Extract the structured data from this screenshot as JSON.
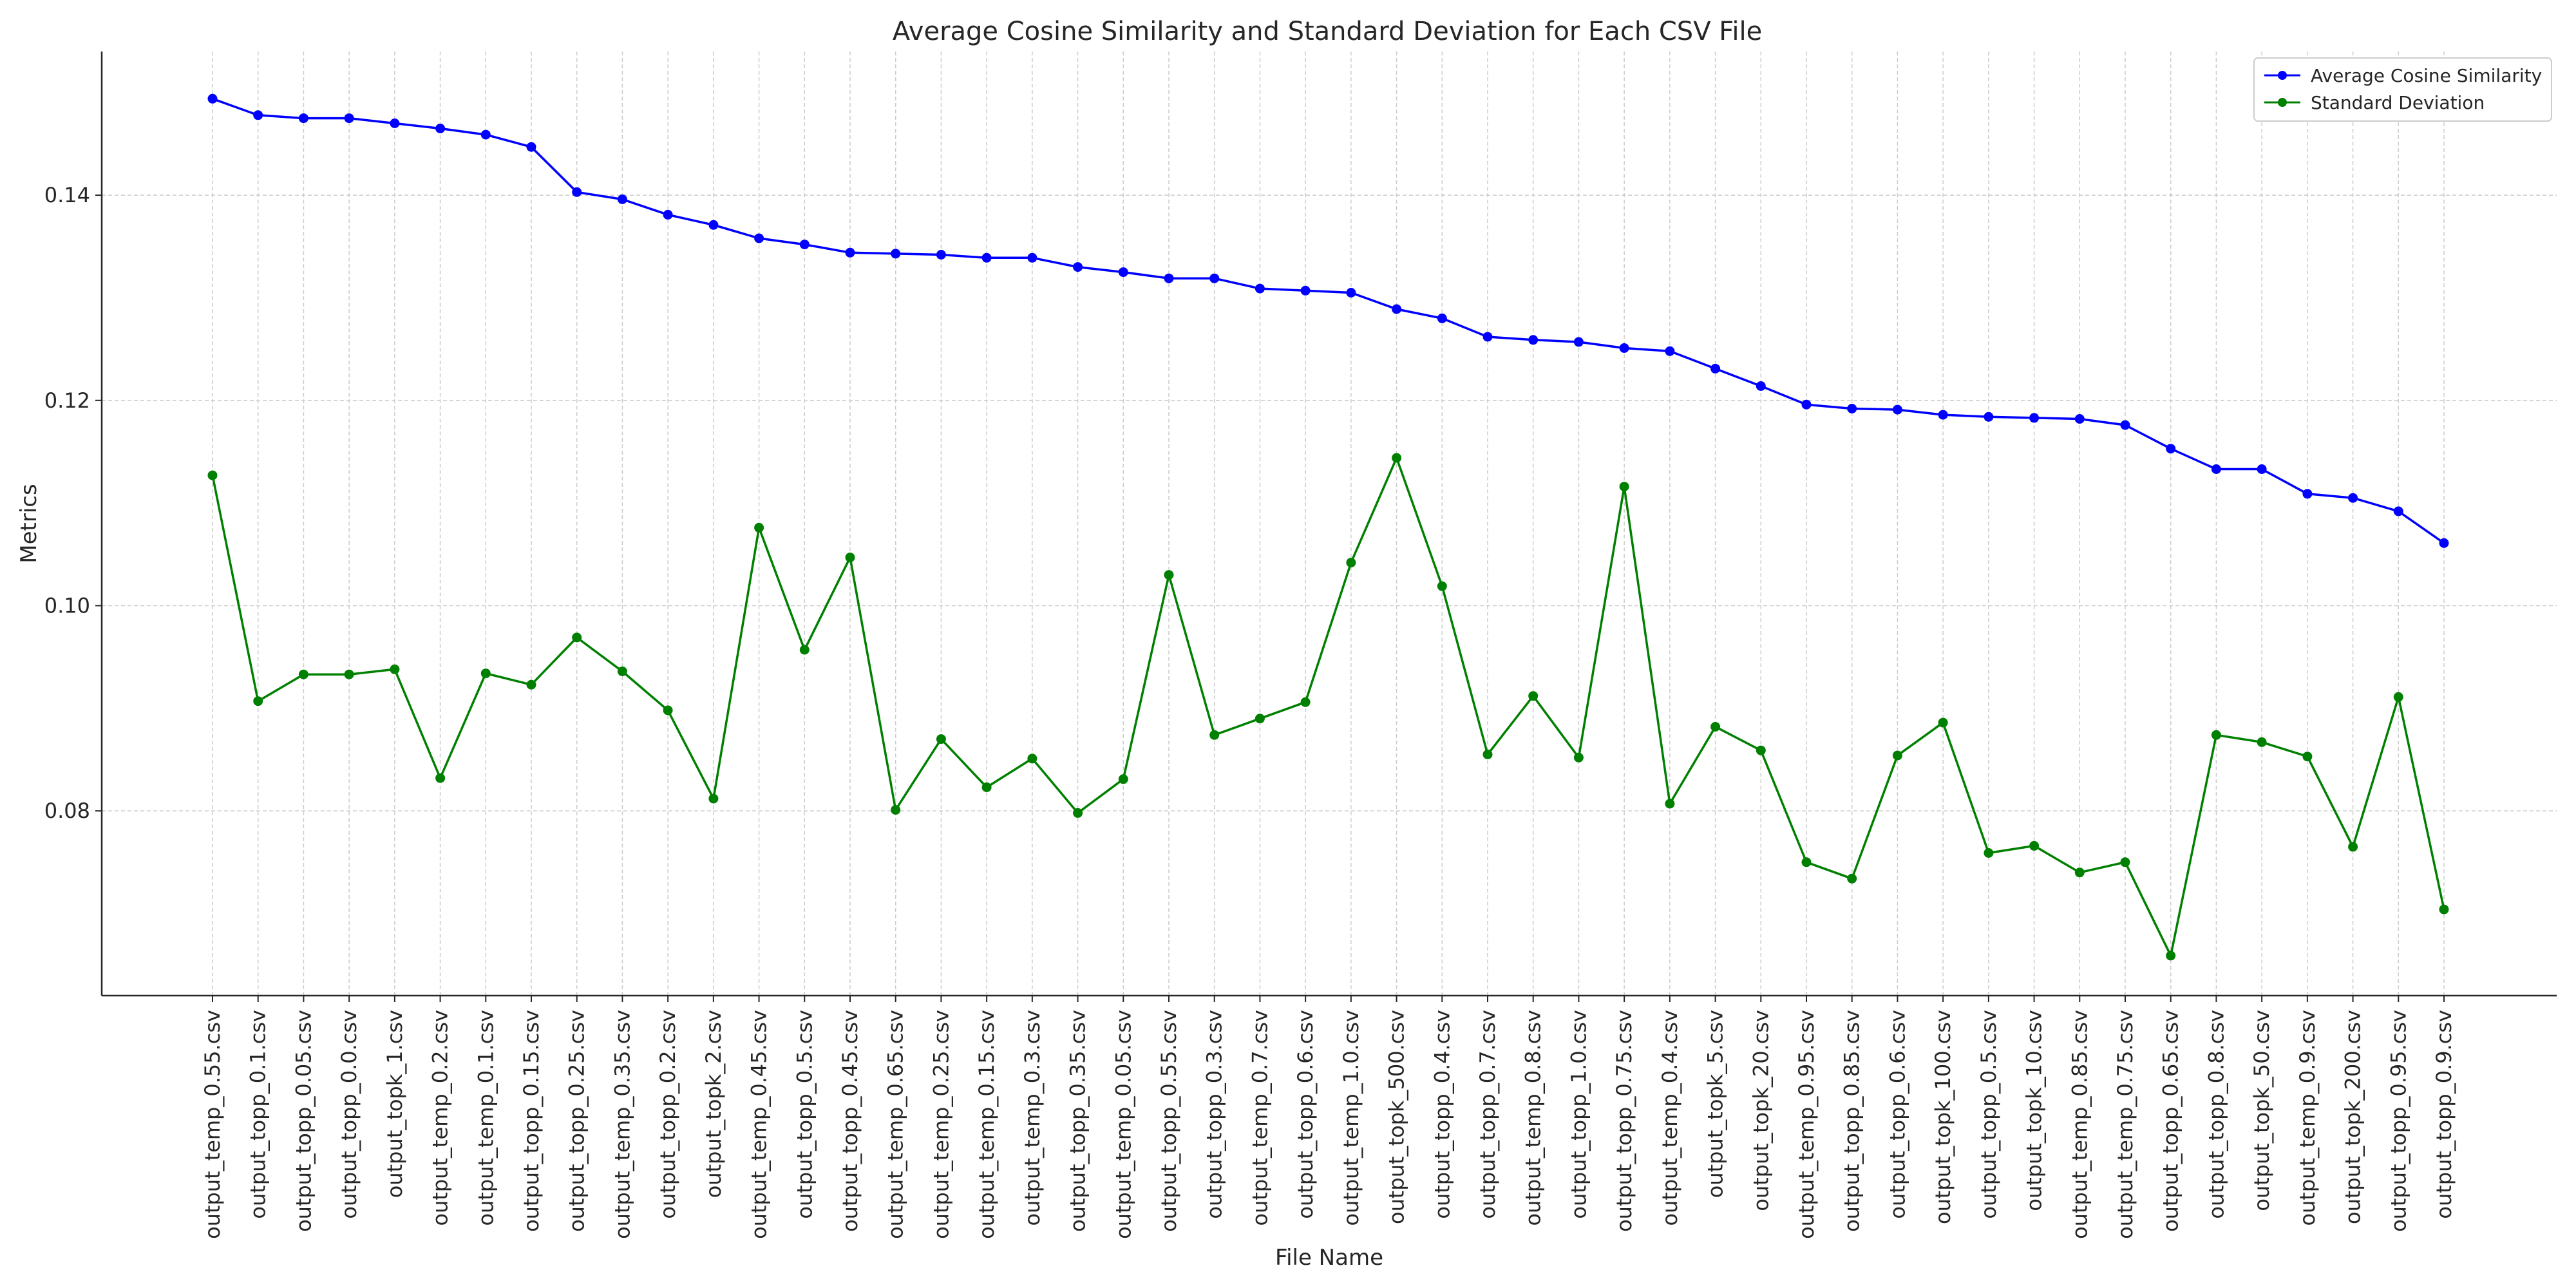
{
  "chart_data": {
    "type": "line",
    "title": "Average Cosine Similarity and Standard Deviation for Each CSV File",
    "xlabel": "File Name",
    "ylabel": "Metrics",
    "ylim": [
      0.062,
      0.154
    ],
    "yticks": [
      0.08,
      0.1,
      0.12,
      0.14
    ],
    "ytick_labels": [
      "0.08",
      "0.10",
      "0.12",
      "0.14"
    ],
    "grid": true,
    "legend_position": "top-right",
    "categories": [
      "output_temp_0.55.csv",
      "output_topp_0.1.csv",
      "output_topp_0.05.csv",
      "output_topp_0.0.csv",
      "output_topk_1.csv",
      "output_temp_0.2.csv",
      "output_temp_0.1.csv",
      "output_topp_0.15.csv",
      "output_topp_0.25.csv",
      "output_temp_0.35.csv",
      "output_topp_0.2.csv",
      "output_topk_2.csv",
      "output_temp_0.45.csv",
      "output_topp_0.5.csv",
      "output_topp_0.45.csv",
      "output_temp_0.65.csv",
      "output_temp_0.25.csv",
      "output_temp_0.15.csv",
      "output_temp_0.3.csv",
      "output_topp_0.35.csv",
      "output_temp_0.05.csv",
      "output_topp_0.55.csv",
      "output_topp_0.3.csv",
      "output_temp_0.7.csv",
      "output_topp_0.6.csv",
      "output_temp_1.0.csv",
      "output_topk_500.csv",
      "output_topp_0.4.csv",
      "output_topp_0.7.csv",
      "output_temp_0.8.csv",
      "output_topp_1.0.csv",
      "output_topp_0.75.csv",
      "output_temp_0.4.csv",
      "output_topk_5.csv",
      "output_topk_20.csv",
      "output_temp_0.95.csv",
      "output_topp_0.85.csv",
      "output_topp_0.6.csv",
      "output_topk_100.csv",
      "output_topp_0.5.csv",
      "output_topk_10.csv",
      "output_temp_0.85.csv",
      "output_temp_0.75.csv",
      "output_topp_0.65.csv",
      "output_topp_0.8.csv",
      "output_topk_50.csv",
      "output_temp_0.9.csv",
      "output_topk_200.csv",
      "output_topp_0.95.csv",
      "output_topp_0.9.csv"
    ],
    "series": [
      {
        "name": "Average Cosine Similarity",
        "color": "#0000ff",
        "values": [
          0.1494,
          0.1478,
          0.1475,
          0.1475,
          0.147,
          0.1465,
          0.1459,
          0.1447,
          0.1403,
          0.1396,
          0.1381,
          0.1371,
          0.1358,
          0.1352,
          0.1344,
          0.1343,
          0.1342,
          0.1339,
          0.1339,
          0.133,
          0.1325,
          0.1319,
          0.1319,
          0.1309,
          0.1307,
          0.1305,
          0.1289,
          0.128,
          0.1262,
          0.1259,
          0.1257,
          0.1251,
          0.1248,
          0.1231,
          0.1214,
          0.1196,
          0.1192,
          0.1191,
          0.1186,
          0.1184,
          0.1183,
          0.1182,
          0.1176,
          0.1153,
          0.1133,
          0.1133,
          0.1109,
          0.1105,
          0.1092,
          0.1061
        ]
      },
      {
        "name": "Standard Deviation",
        "color": "#008000",
        "values": [
          0.1127,
          0.0907,
          0.0933,
          0.0933,
          0.0938,
          0.0832,
          0.0934,
          0.0923,
          0.0969,
          0.0936,
          0.0898,
          0.0812,
          0.1076,
          0.0957,
          0.1047,
          0.0801,
          0.087,
          0.0823,
          0.0851,
          0.0798,
          0.0831,
          0.103,
          0.0874,
          0.089,
          0.0906,
          0.1042,
          0.1144,
          0.1019,
          0.0855,
          0.0912,
          0.0852,
          0.1116,
          0.0807,
          0.0882,
          0.0859,
          0.075,
          0.0734,
          0.0854,
          0.0886,
          0.0759,
          0.0766,
          0.074,
          0.075,
          0.0659,
          0.0874,
          0.0867,
          0.0853,
          0.0765,
          0.0911,
          0.0704
        ]
      }
    ]
  }
}
